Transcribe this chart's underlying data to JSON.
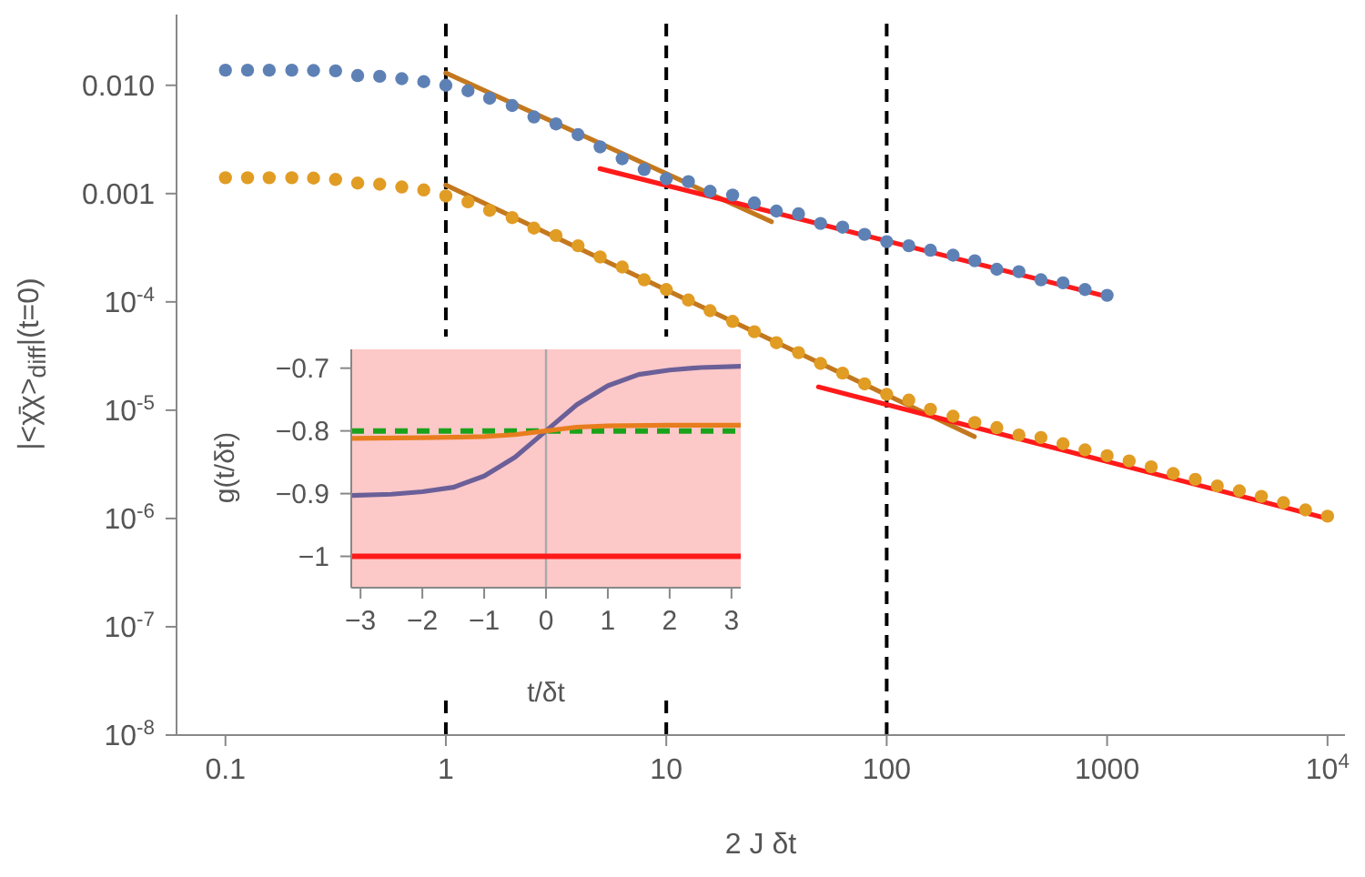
{
  "chart_data": [
    {
      "type": "scatter",
      "xlabel": "2 J δt",
      "ylabel": "|<χ̄χ>$_{diff}$|(t=0)",
      "log": "xy",
      "xlim": [
        0.06,
        12000
      ],
      "ylim": [
        1e-08,
        0.045
      ],
      "xticks": [
        0.1,
        1,
        10,
        100,
        1000,
        {
          "value": 10000,
          "label": "10$^{4}$"
        }
      ],
      "yticks": [
        {
          "value": 1e-08,
          "label": "10$^{-8}$"
        },
        {
          "value": 1e-07,
          "label": "10$^{-7}$"
        },
        {
          "value": 1e-06,
          "label": "10$^{-6}$"
        },
        {
          "value": 1e-05,
          "label": "10$^{-5}$"
        },
        {
          "value": 0.0001,
          "label": "10$^{-4}$"
        },
        0.001,
        {
          "value": 0.01,
          "label": "0.010"
        }
      ],
      "marker": "circle",
      "legend": false,
      "grid": false,
      "ref_lines": [
        {
          "axis": "x",
          "value": 1,
          "color": "#000000",
          "line_style": "dashed"
        },
        {
          "axis": "x",
          "value": 10,
          "color": "#000000",
          "line_style": "dashed"
        },
        {
          "axis": "x",
          "value": 100,
          "color": "#000000",
          "line_style": "dashed"
        }
      ],
      "series": [
        {
          "color": "#5e81b5",
          "x": [
            0.1,
            0.126,
            0.158,
            0.2,
            0.251,
            0.316,
            0.398,
            0.501,
            0.631,
            0.794,
            1,
            1.26,
            1.58,
            2,
            2.51,
            3.16,
            3.98,
            5.01,
            6.31,
            7.94,
            10,
            12.6,
            15.8,
            20,
            25.1,
            31.6,
            39.8,
            50.1,
            63.1,
            79.4,
            100,
            126,
            158,
            200,
            251,
            316,
            398,
            501,
            631,
            794,
            1000
          ],
          "values": [
            0.0138,
            0.0138,
            0.0138,
            0.0138,
            0.0137,
            0.0136,
            0.0123,
            0.0121,
            0.0115,
            0.0108,
            0.01,
            0.0089,
            0.0076,
            0.0065,
            0.0051,
            0.0044,
            0.0035,
            0.0027,
            0.0021,
            0.00167,
            0.00137,
            0.00129,
            0.00105,
            0.00097,
            0.00082,
            0.00069,
            0.00065,
            0.00053,
            0.00049,
            0.00042,
            0.00036,
            0.00033,
            0.0003,
            0.00027,
            0.00024,
            0.0002,
            0.00019,
            0.00016,
            0.00015,
            0.00013,
            0.000115
          ]
        },
        {
          "color": "#e19c24",
          "x": [
            0.1,
            0.126,
            0.158,
            0.2,
            0.251,
            0.316,
            0.398,
            0.501,
            0.631,
            0.794,
            1,
            1.26,
            1.58,
            2,
            2.51,
            3.16,
            3.98,
            5.01,
            6.31,
            7.94,
            10,
            12.6,
            15.8,
            20,
            25.1,
            31.6,
            39.8,
            50.1,
            63.1,
            79.4,
            100,
            126,
            158,
            200,
            251,
            316,
            398,
            501,
            631,
            794,
            1000,
            1259,
            1585,
            1995,
            2512,
            3162,
            3981,
            5012,
            6310,
            7943,
            10000
          ],
          "values": [
            0.0014,
            0.0014,
            0.0014,
            0.0014,
            0.00139,
            0.00135,
            0.00125,
            0.00122,
            0.00115,
            0.00108,
            0.00095,
            0.00084,
            0.0007,
            0.0006,
            0.00048,
            0.00041,
            0.00033,
            0.00026,
            0.00021,
            0.00016,
            0.00013,
            0.000104,
            8.3e-05,
            6.6e-05,
            5.3e-05,
            4.2e-05,
            3.4e-05,
            2.7e-05,
            2.2e-05,
            1.75e-05,
            1.4e-05,
            1.24e-05,
            1.02e-05,
            8.8e-06,
            7.7e-06,
            6.9e-06,
            5.9e-06,
            5.6e-06,
            4.9e-06,
            4.3e-06,
            3.8e-06,
            3.4e-06,
            3e-06,
            2.6e-06,
            2.3e-06,
            2e-06,
            1.8e-06,
            1.6e-06,
            1.4e-06,
            1.2e-06,
            1.05e-06
          ]
        },
        {
          "type": "line",
          "marker": "none",
          "color": "#c4781e",
          "x": [
            1,
            30
          ],
          "values": [
            0.013,
            0.00055
          ]
        },
        {
          "type": "line",
          "marker": "none",
          "color": "#c4781e",
          "x": [
            1,
            250
          ],
          "values": [
            0.0012,
            5.7e-06
          ]
        },
        {
          "type": "line",
          "marker": "none",
          "color": "#ff1a1a",
          "x": [
            5,
            1000
          ],
          "values": [
            0.0017,
            0.000112
          ]
        },
        {
          "type": "line",
          "marker": "none",
          "color": "#ff1a1a",
          "x": [
            49,
            10000
          ],
          "values": [
            1.64e-05,
            1e-06
          ]
        }
      ]
    },
    {
      "type": "line",
      "xlabel": "t/δt",
      "ylabel": "g(t/δt)",
      "xlim": [
        -3.15,
        3.15
      ],
      "ylim": [
        -1.05,
        -0.67
      ],
      "xticks": [
        {
          "value": -3,
          "label": "−3"
        },
        {
          "value": -2,
          "label": "−2"
        },
        {
          "value": -1,
          "label": "−1"
        },
        0,
        1,
        2,
        3
      ],
      "yticks": [
        {
          "value": -1,
          "label": "−1"
        },
        {
          "value": -0.9,
          "label": "−0.9"
        },
        {
          "value": -0.8,
          "label": "−0.8"
        },
        {
          "value": -0.7,
          "label": "−0.7"
        }
      ],
      "legend": false,
      "grid": false,
      "bands": [
        {
          "axis": "y",
          "from": -1.05,
          "to": -0.67,
          "color": "#fcc8c8"
        }
      ],
      "ref_lines": [
        {
          "axis": "x",
          "value": 0,
          "color": "#aaaaaa",
          "line_style": "solid"
        },
        {
          "axis": "y",
          "value": -1,
          "color": "#ff1a1a",
          "line_style": "solid"
        },
        {
          "axis": "y",
          "value": -0.8,
          "color": "#1aa31a",
          "line_style": "dashed"
        }
      ],
      "series": [
        {
          "color": "#6a5f98",
          "x": [
            -3.15,
            -2.5,
            -2,
            -1.5,
            -1,
            -0.5,
            0,
            0.5,
            1,
            1.5,
            2,
            2.5,
            3.15
          ],
          "values": [
            -0.903,
            -0.901,
            -0.897,
            -0.89,
            -0.872,
            -0.842,
            -0.8,
            -0.758,
            -0.728,
            -0.71,
            -0.703,
            -0.699,
            -0.697
          ]
        },
        {
          "color": "#e87d1e",
          "x": [
            -3.15,
            -2,
            -1,
            -0.5,
            0,
            0.5,
            1,
            2,
            3.15
          ],
          "values": [
            -0.812,
            -0.811,
            -0.809,
            -0.806,
            -0.8,
            -0.794,
            -0.792,
            -0.791,
            -0.791
          ]
        }
      ]
    }
  ]
}
